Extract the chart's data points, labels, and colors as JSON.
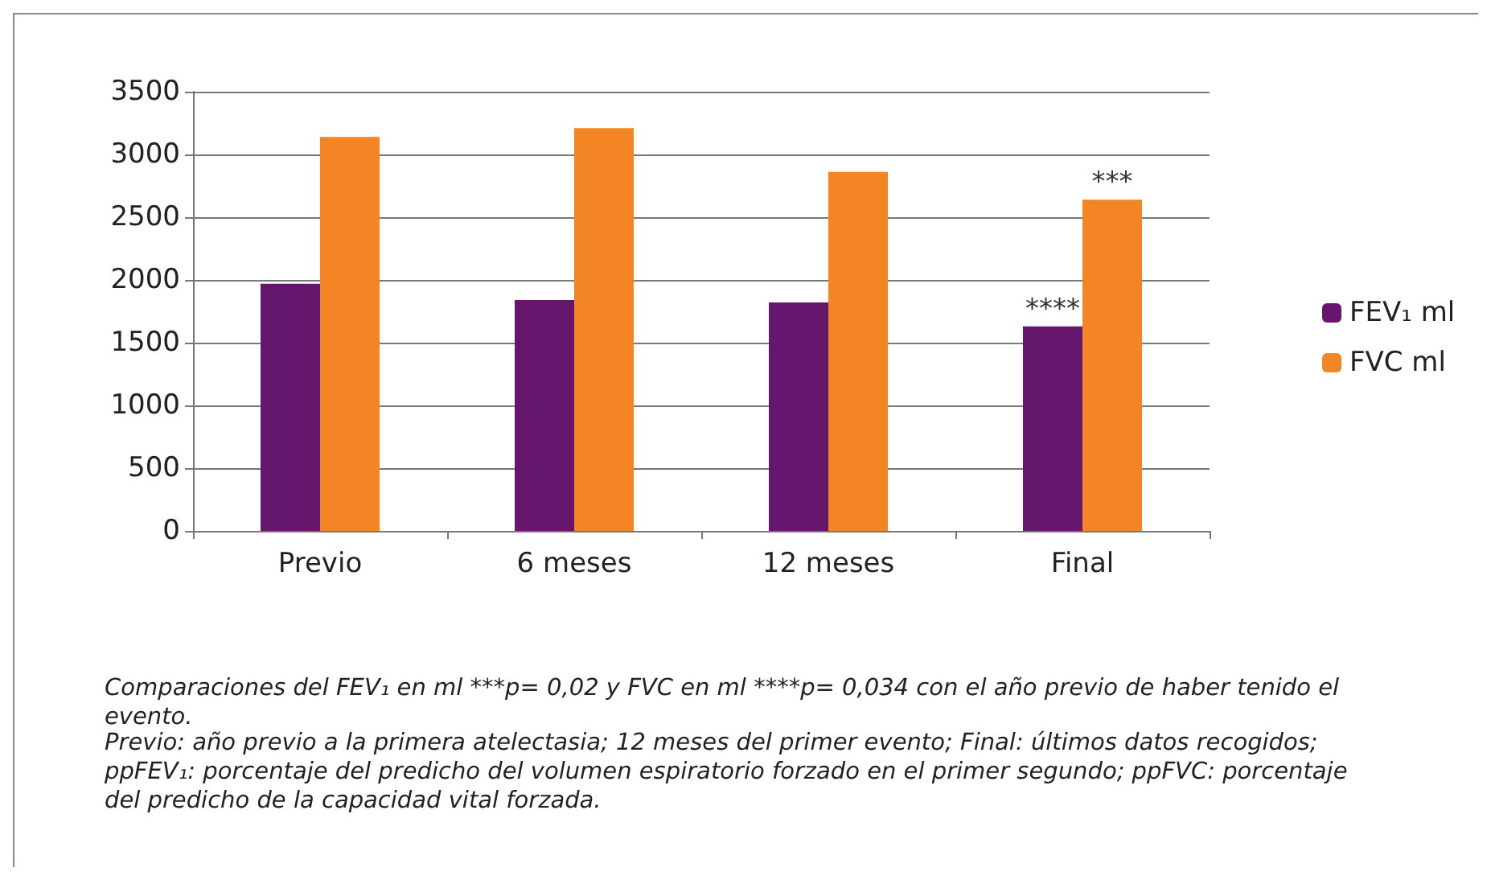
{
  "chart_data": {
    "type": "bar",
    "categories": [
      "Previo",
      "6 meses",
      "12 meses",
      "Final"
    ],
    "series": [
      {
        "name": "FEV₁ ml",
        "color": "#65176e",
        "values": [
          1970,
          1840,
          1820,
          1630
        ]
      },
      {
        "name": "FVC ml",
        "color": "#f38524",
        "values": [
          3140,
          3210,
          2860,
          2640
        ]
      }
    ],
    "ylim": [
      0,
      3500
    ],
    "yticks": [
      0,
      500,
      1000,
      1500,
      2000,
      2500,
      3000,
      3500
    ],
    "grid": "y",
    "legend": "right",
    "annotations": [
      {
        "text": "****",
        "x": "Final",
        "y": 1630
      },
      {
        "text": "***",
        "x": "Final",
        "y": 2640
      },
      "Comparaciones del FEV₁ en ml ***p= 0,02 y FVC en ml ****p= 0,034 con el año previo de haber tenido el evento.",
      "Previo: año previo a la primera atelectasia; 12 meses del primer evento; Final: últimos datos recogidos; ppFEV₁: porcentaje del predicho del volumen espiratorio forzado en el primer segundo; ppFVC: porcentaje del predicho de la capacidad vital forzada."
    ]
  }
}
